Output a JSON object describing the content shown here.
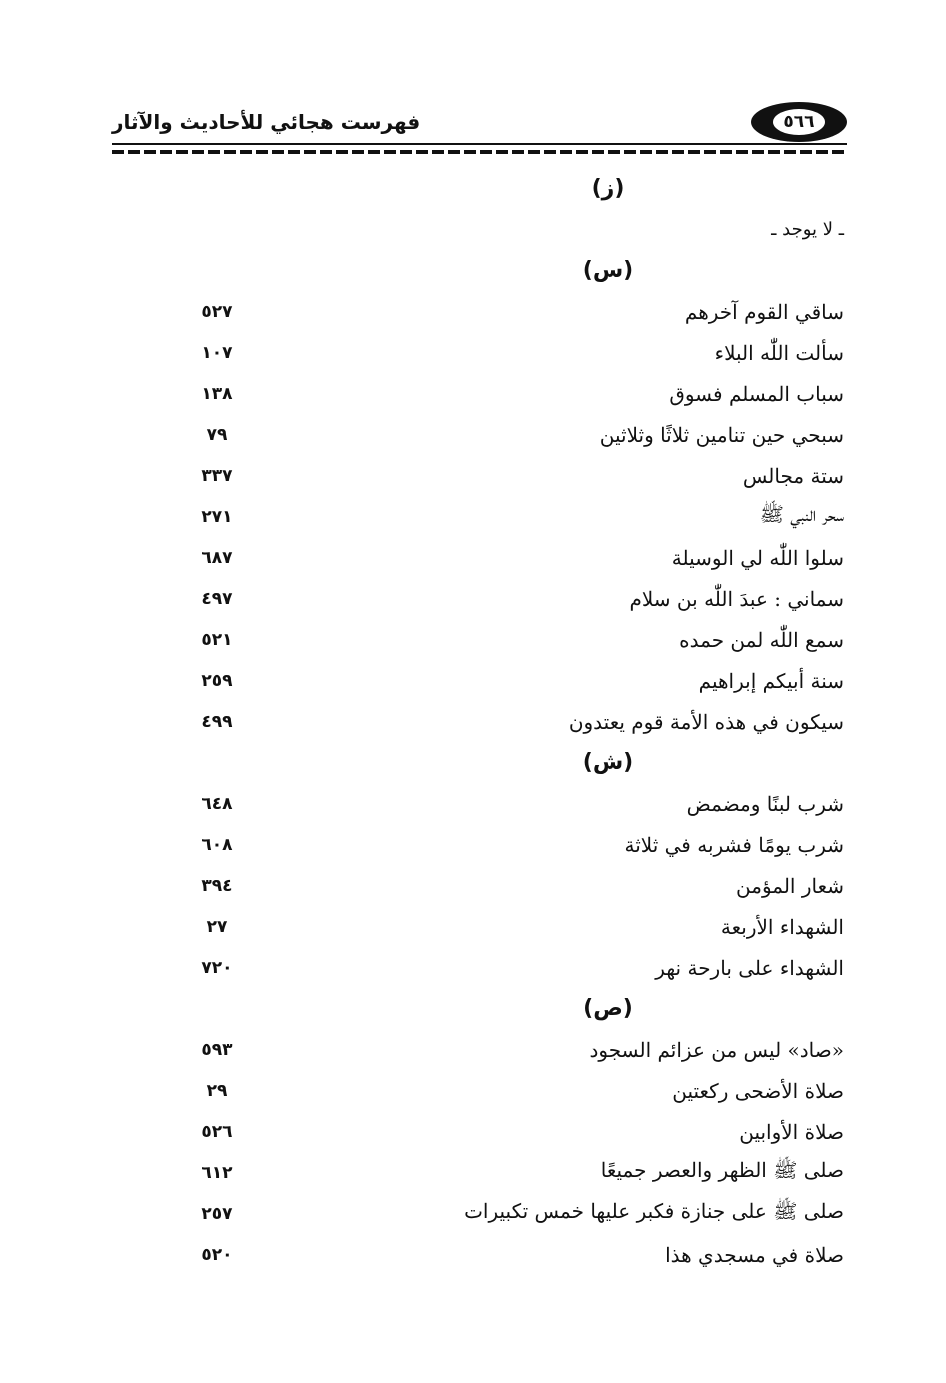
{
  "header": {
    "page_number": "٥٦٦",
    "running_title": "فهرست هجائي للأحاديث والآثار"
  },
  "sections": [
    {
      "letter": "(ز)",
      "note": "ـ لا يوجد ـ",
      "entries": []
    },
    {
      "letter": "(س)",
      "entries": [
        {
          "text": "ساقي القوم آخرهم",
          "page": "٥٢٧"
        },
        {
          "text": "سألت اللّٰه البلاء",
          "page": "١٠٧"
        },
        {
          "text": "سباب المسلم فسوق",
          "page": "١٣٨"
        },
        {
          "text": "سبحي حين تنامين ثلاثًا وثلاثين",
          "page": "٧٩"
        },
        {
          "text": "ستة مجالس",
          "page": "٣٣٧"
        },
        {
          "text": "سحر النبي ﷺ",
          "page": "٢٧١"
        },
        {
          "text": "سلوا اللّٰه لي الوسيلة",
          "page": "٦٨٧"
        },
        {
          "text": "سماني : عبدَ اللّٰه بن سلام",
          "page": "٤٩٧"
        },
        {
          "text": "سمع اللّٰه لمن حمده",
          "page": "٥٢١"
        },
        {
          "text": "سنة أبيكم إبراهيم",
          "page": "٢٥٩"
        },
        {
          "text": "سيكون في هذه الأمة قوم يعتدون",
          "page": "٤٩٩"
        }
      ]
    },
    {
      "letter": "(ش)",
      "entries": [
        {
          "text": "شرب لبنًا ومضمض",
          "page": "٦٤٨"
        },
        {
          "text": "شرب يومًا فشربه في ثلاثة",
          "page": "٦٠٨"
        },
        {
          "text": "شعار المؤمن",
          "page": "٣٩٤"
        },
        {
          "text": "الشهداء الأربعة",
          "page": "٢٧"
        },
        {
          "text": "الشهداء على بارحة نهر",
          "page": "٧٢٠"
        }
      ]
    },
    {
      "letter": "(ص)",
      "entries": [
        {
          "text": "«صاد» ليس من عزائم السجود",
          "page": "٥٩٣"
        },
        {
          "text": "صلاة الأضحى ركعتين",
          "page": "٢٩"
        },
        {
          "text": "صلاة الأوابين",
          "page": "٥٢٦"
        },
        {
          "text": "صلى ﷺ الظهر والعصر جميعًا",
          "page": "٦١٢"
        },
        {
          "text": "صلى ﷺ على جنازة فكبر عليها خمس تكبيرات",
          "page": "٢٥٧"
        },
        {
          "text": "صلاة في مسجدي هذا",
          "page": "٥٢٠"
        }
      ]
    }
  ]
}
